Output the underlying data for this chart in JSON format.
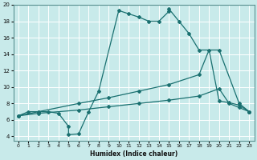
{
  "xlabel": "Humidex (Indice chaleur)",
  "background_color": "#c8eaea",
  "grid_color": "#ffffff",
  "line_color": "#1a7070",
  "xlim": [
    -0.5,
    23.5
  ],
  "ylim": [
    3.5,
    20.0
  ],
  "xticks": [
    0,
    1,
    2,
    3,
    4,
    5,
    6,
    7,
    8,
    9,
    10,
    11,
    12,
    13,
    14,
    15,
    16,
    17,
    18,
    19,
    20,
    21,
    22,
    23
  ],
  "yticks": [
    4,
    6,
    8,
    10,
    12,
    14,
    16,
    18,
    20
  ],
  "line1_x": [
    0,
    1,
    2,
    3,
    4,
    5,
    5,
    6,
    7,
    8,
    10,
    11,
    12,
    13,
    14,
    15,
    15,
    16,
    17,
    18,
    20,
    22,
    23
  ],
  "line1_y": [
    6.5,
    7.0,
    7.0,
    7.0,
    6.8,
    5.2,
    4.2,
    4.3,
    7.0,
    9.5,
    19.3,
    18.9,
    18.5,
    18.0,
    18.0,
    19.2,
    19.5,
    18.0,
    16.5,
    14.5,
    14.5,
    8.0,
    7.0
  ],
  "line2_x": [
    0,
    2,
    6,
    9,
    12,
    15,
    18,
    19,
    20,
    21,
    22,
    23
  ],
  "line2_y": [
    6.5,
    7.0,
    8.0,
    8.7,
    9.5,
    10.3,
    11.5,
    14.5,
    8.3,
    8.1,
    7.8,
    7.0
  ],
  "line3_x": [
    0,
    2,
    6,
    9,
    12,
    15,
    18,
    20,
    21,
    22,
    23
  ],
  "line3_y": [
    6.5,
    6.8,
    7.2,
    7.6,
    8.0,
    8.4,
    8.9,
    9.8,
    8.0,
    7.5,
    7.0
  ]
}
